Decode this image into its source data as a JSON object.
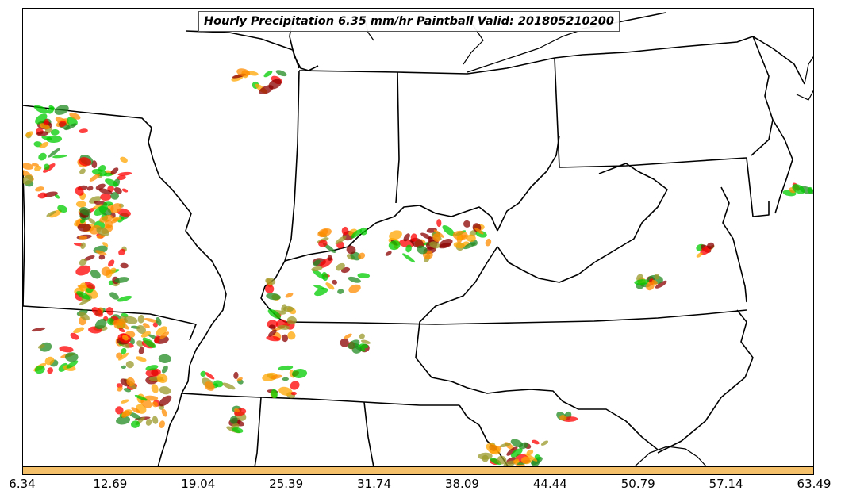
{
  "title": "Hourly Precipitation 6.35 mm/hr Paintball Valid: 201805210200",
  "colorbar": {
    "fill_color": "#f5c06a",
    "ticks": [
      "6.34",
      "12.69",
      "19.04",
      "25.39",
      "31.74",
      "38.09",
      "44.44",
      "50.79",
      "57.14",
      "63.49"
    ]
  },
  "member_colors": [
    "#ff0000",
    "#ff8c00",
    "#00cc00",
    "#8b0000",
    "#9a9a2a",
    "#228b22",
    "#ffa500"
  ]
}
